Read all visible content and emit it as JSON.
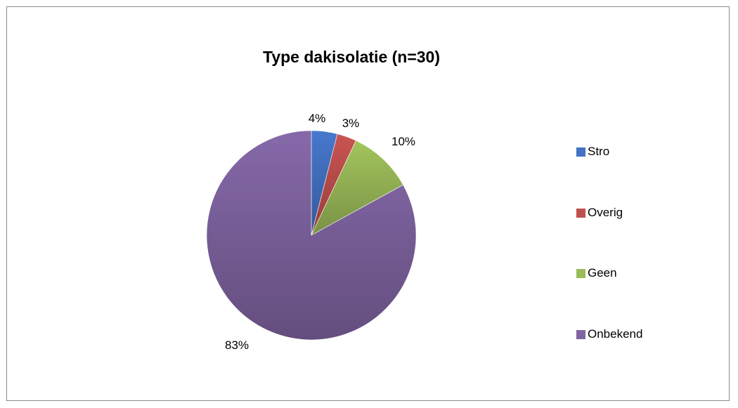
{
  "chart_data": {
    "type": "pie",
    "title": "Type dakisolatie (n=30)",
    "categories": [
      "Stro",
      "Overig",
      "Geen",
      "Onbekend"
    ],
    "values": [
      4,
      3,
      10,
      83
    ],
    "value_labels": [
      "4%",
      "3%",
      "10%",
      "83%"
    ],
    "colors": [
      "#4472C4",
      "#C0504D",
      "#9BBB59",
      "#8064A2"
    ],
    "legend_position": "right",
    "start_angle": "12 o'clock",
    "direction": "clockwise"
  }
}
